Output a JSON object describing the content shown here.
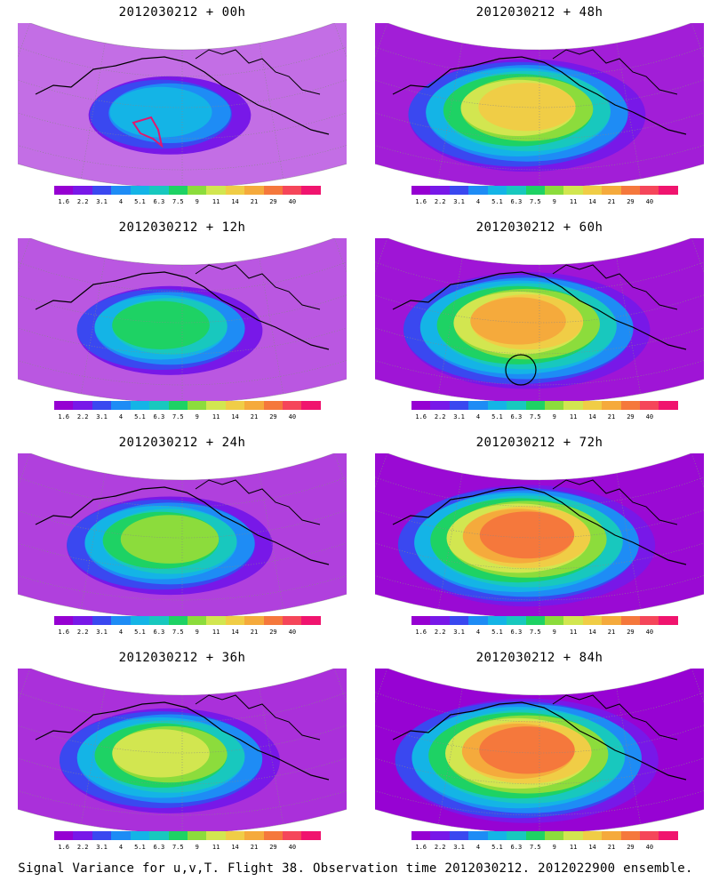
{
  "caption": "Signal Variance for u,v,T. Flight 38. Observation time 2012030212. 2012022900 ensemble.",
  "colorbar": {
    "ticks": [
      "1.6",
      "2.2",
      "3.1",
      "4",
      "5.1",
      "6.3",
      "7.5",
      "9",
      "11",
      "14",
      "21",
      "29",
      "40"
    ],
    "colors": [
      "#9600d2",
      "#7818e8",
      "#3a48f0",
      "#1e8cf5",
      "#14b4e6",
      "#18c8be",
      "#1ed264",
      "#8cdc3c",
      "#d2e650",
      "#f0cd46",
      "#f5aa3c",
      "#f5783c",
      "#f5465a",
      "#f0146e"
    ]
  },
  "panels": [
    {
      "title": "2012030212 + 00h",
      "intensity": 0.2,
      "marker": "forecast-area-outline"
    },
    {
      "title": "2012030212 + 48h",
      "intensity": 0.72,
      "marker": null
    },
    {
      "title": "2012030212 + 12h",
      "intensity": 0.35,
      "marker": null
    },
    {
      "title": "2012030212 + 60h",
      "intensity": 0.78,
      "marker": "circle-marker"
    },
    {
      "title": "2012030212 + 24h",
      "intensity": 0.5,
      "marker": null
    },
    {
      "title": "2012030212 + 72h",
      "intensity": 0.85,
      "marker": null
    },
    {
      "title": "2012030212 + 36h",
      "intensity": 0.6,
      "marker": null
    },
    {
      "title": "2012030212 + 84h",
      "intensity": 0.9,
      "marker": null
    }
  ]
}
